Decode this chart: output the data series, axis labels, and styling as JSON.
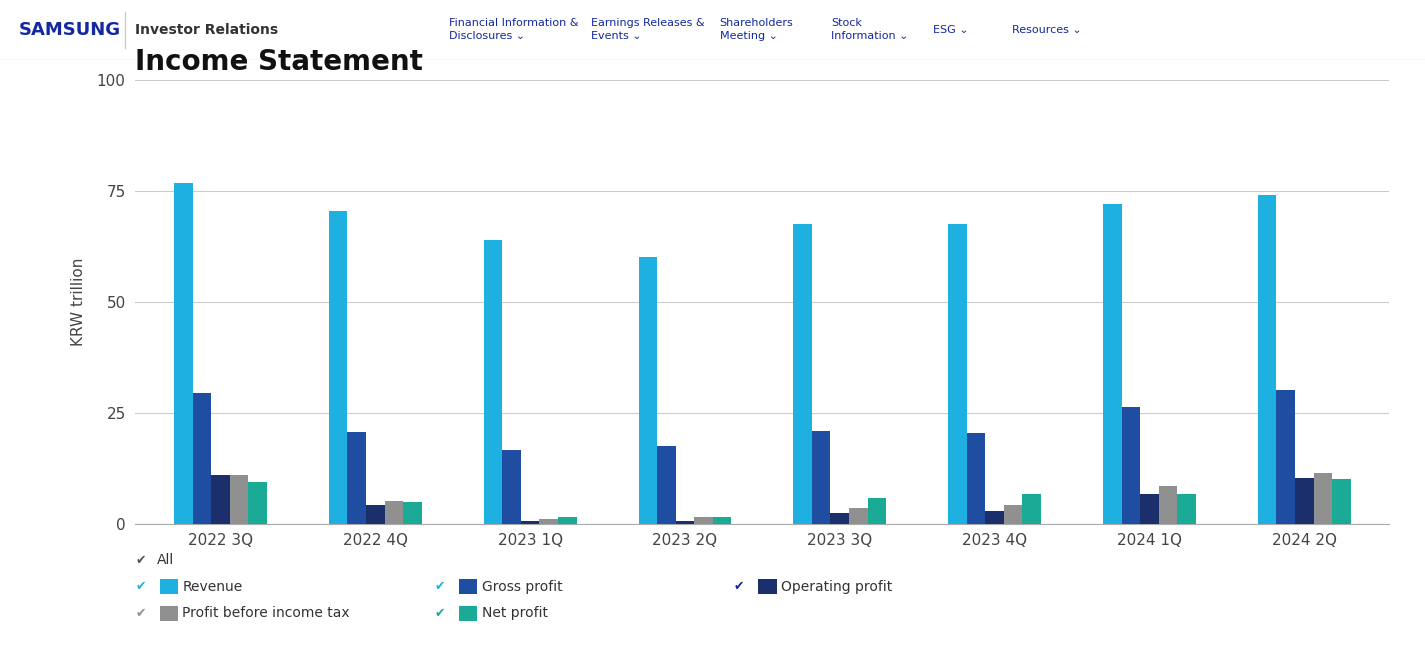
{
  "title": "Income Statement",
  "ylabel": "KRW trillion",
  "quarters": [
    "2022 3Q",
    "2022 4Q",
    "2023 1Q",
    "2023 2Q",
    "2023 3Q",
    "2023 4Q",
    "2024 1Q",
    "2024 2Q"
  ],
  "series": {
    "Revenue": [
      76.8,
      70.5,
      63.8,
      60.0,
      67.4,
      67.4,
      71.9,
      74.1
    ],
    "Gross profit": [
      29.4,
      20.6,
      16.7,
      17.4,
      20.8,
      20.5,
      26.3,
      30.1
    ],
    "Operating profit": [
      10.9,
      4.3,
      0.6,
      0.7,
      2.4,
      2.8,
      6.6,
      10.4
    ],
    "Profit before income tax": [
      11.0,
      5.2,
      1.1,
      1.5,
      3.5,
      4.2,
      8.5,
      11.4
    ],
    "Net profit": [
      9.4,
      5.0,
      1.6,
      1.6,
      5.8,
      6.7,
      6.7,
      10.1
    ]
  },
  "colors": {
    "Revenue": "#1DB0E0",
    "Gross profit": "#1E4DA1",
    "Operating profit": "#1A2F6B",
    "Profit before income tax": "#909090",
    "Net profit": "#1BAA96"
  },
  "ylim": [
    0,
    100
  ],
  "yticks": [
    0,
    25,
    50,
    75,
    100
  ],
  "background_color": "#FFFFFF",
  "nav_background": "#FFFFFF",
  "nav_border_color": "#E0E0E0",
  "samsung_text": "SAMSUNG",
  "samsung_color": "#1428A0",
  "nav_sep_color": "#CCCCCC",
  "investor_text": "Investor Relations",
  "nav_items": [
    {
      "text": "Financial Information &\nDisclosures ⌄",
      "color": "#1428A0"
    },
    {
      "text": "Earnings Releases &\nEvents ⌄",
      "color": "#1428A0"
    },
    {
      "text": "Shareholders\nMeeting ⌄",
      "color": "#1428A0"
    },
    {
      "text": "Stock\nInformation ⌄",
      "color": "#1428A0"
    },
    {
      "text": "ESG ⌄",
      "color": "#1428A0"
    },
    {
      "text": "Resources ⌄",
      "color": "#1428A0"
    }
  ],
  "title_fontsize": 20,
  "tick_fontsize": 11,
  "label_fontsize": 11,
  "bar_width": 0.12,
  "legend_check_color_all": "#333333",
  "legend_rows": [
    [
      {
        "label": "Revenue",
        "color": "#1DB0E0",
        "check_color": "#1DB0E0"
      },
      {
        "label": "Gross profit",
        "color": "#1E4DA1",
        "check_color": "#1DB0E0"
      },
      {
        "label": "Operating profit",
        "color": "#1A2F6B",
        "check_color": "#1428A0"
      }
    ],
    [
      {
        "label": "Profit before income tax",
        "color": "#909090",
        "check_color": "#909090"
      },
      {
        "label": "Net profit",
        "color": "#1BAA96",
        "check_color": "#1BAA96"
      }
    ]
  ]
}
